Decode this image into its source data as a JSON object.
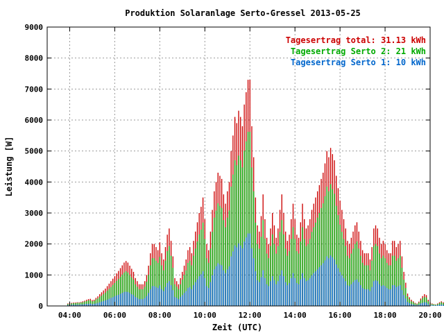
{
  "chart_data": {
    "type": "bar",
    "title": "Produktion Solaranlage Serto-Gressel 2013-05-25",
    "xlabel": "Zeit (UTC)",
    "ylabel": "Leistung [W]",
    "xlim": [
      "03:00",
      "20:00"
    ],
    "ylim": [
      0,
      9000
    ],
    "grid": true,
    "legend_position": "top-right",
    "xticks": [
      "04:00",
      "06:00",
      "08:00",
      "10:00",
      "12:00",
      "14:00",
      "16:00",
      "18:00",
      "20:00"
    ],
    "yticks": [
      "0",
      "1000",
      "2000",
      "3000",
      "4000",
      "5000",
      "6000",
      "7000",
      "8000",
      "9000"
    ],
    "interval_minutes": 5,
    "series": [
      {
        "name": "Tagesertrag total: 31.13 kWh",
        "color": "#cc0000",
        "x_start": "03:55",
        "values": [
          80,
          90,
          100,
          110,
          110,
          120,
          120,
          130,
          150,
          170,
          200,
          220,
          230,
          190,
          200,
          260,
          310,
          380,
          440,
          500,
          560,
          640,
          720,
          800,
          880,
          960,
          1050,
          1130,
          1220,
          1310,
          1400,
          1450,
          1400,
          1300,
          1200,
          1100,
          900,
          800,
          700,
          700,
          700,
          800,
          1000,
          1300,
          1700,
          2000,
          2000,
          1900,
          1800,
          2050,
          1700,
          1500,
          1900,
          2300,
          2500,
          2100,
          1600,
          900,
          800,
          700,
          900,
          1100,
          1300,
          1500,
          1800,
          1900,
          1700,
          2100,
          2400,
          2700,
          3000,
          3200,
          3500,
          2800,
          2000,
          1800,
          2400,
          3100,
          3700,
          4000,
          4300,
          4200,
          4100,
          3600,
          3300,
          3700,
          4000,
          5000,
          5500,
          6100,
          5900,
          6300,
          6100,
          5800,
          6500,
          6900,
          7300,
          7300,
          5800,
          4800,
          3500,
          2600,
          2400,
          2900,
          3600,
          2800,
          2200,
          2000,
          2500,
          3000,
          2600,
          2200,
          2500,
          3100,
          3600,
          3000,
          2400,
          2100,
          2300,
          2800,
          3300,
          2800,
          2300,
          2200,
          2700,
          3300,
          2800,
          2500,
          2600,
          2800,
          3100,
          3300,
          3500,
          3700,
          3900,
          4100,
          4300,
          4600,
          5000,
          4800,
          5100,
          4900,
          4700,
          4200,
          3800,
          3400,
          3100,
          2800,
          2500,
          2100,
          2000,
          2200,
          2400,
          2600,
          2700,
          2400,
          2100,
          1800,
          1700,
          1700,
          1700,
          1500,
          1900,
          2500,
          2600,
          2500,
          2200,
          2000,
          2100,
          2000,
          1800,
          1700,
          1700,
          2100,
          2100,
          1900,
          2000,
          2100,
          1600,
          1100,
          750,
          400,
          280,
          200,
          150,
          100,
          80,
          140,
          240,
          320,
          380,
          350,
          200,
          120,
          80,
          60,
          50,
          80,
          120,
          150,
          120,
          60,
          40,
          25,
          10,
          0
        ]
      },
      {
        "name": "Tagesertrag Serto 2: 21 kWh",
        "color": "#00aa00",
        "x_start": "03:55",
        "values": [
          60,
          70,
          80,
          90,
          90,
          100,
          100,
          110,
          120,
          140,
          160,
          180,
          180,
          150,
          160,
          210,
          240,
          290,
          330,
          380,
          430,
          490,
          550,
          610,
          680,
          740,
          810,
          870,
          940,
          1010,
          1080,
          1120,
          1080,
          1000,
          920,
          850,
          700,
          620,
          540,
          540,
          540,
          620,
          780,
          1000,
          1310,
          1540,
          1540,
          1460,
          1390,
          1580,
          1310,
          1150,
          1460,
          1770,
          1930,
          1620,
          1230,
          700,
          620,
          540,
          700,
          850,
          1000,
          1150,
          1390,
          1460,
          1310,
          1620,
          1850,
          2080,
          2310,
          2460,
          2690,
          2160,
          1540,
          1390,
          1850,
          2390,
          2850,
          3080,
          3310,
          3230,
          3160,
          2770,
          2540,
          2850,
          3080,
          3850,
          4240,
          4700,
          4540,
          4850,
          4700,
          4470,
          5010,
          5310,
          5620,
          5620,
          4470,
          3700,
          2690,
          2000,
          1850,
          2230,
          2770,
          2160,
          1690,
          1540,
          1930,
          2310,
          2000,
          1690,
          1930,
          2390,
          2770,
          2310,
          1850,
          1620,
          1770,
          2160,
          2540,
          2160,
          1770,
          1690,
          2080,
          2540,
          2160,
          1930,
          2000,
          2160,
          2390,
          2540,
          2690,
          2850,
          3000,
          3160,
          3310,
          3540,
          3850,
          3700,
          3930,
          3770,
          3620,
          3230,
          2930,
          2620,
          2390,
          2160,
          1930,
          1620,
          1540,
          1690,
          1850,
          2000,
          2080,
          1850,
          1620,
          1390,
          1310,
          1310,
          1310,
          1150,
          1460,
          1930,
          2000,
          1930,
          1690,
          1540,
          1620,
          1540,
          1390,
          1310,
          1310,
          1620,
          1620,
          1460,
          1540,
          1620,
          1230,
          850,
          580,
          310,
          220,
          150,
          120,
          80,
          60,
          110,
          190,
          250,
          290,
          270,
          150,
          90,
          60,
          50,
          40,
          60,
          90,
          120,
          90,
          50,
          30,
          20,
          8,
          0
        ]
      },
      {
        "name": "Tagesertrag Serto 1: 10 kWh",
        "color": "#0066cc",
        "x_start": "03:55",
        "values": [
          30,
          30,
          40,
          40,
          40,
          40,
          40,
          50,
          50,
          60,
          70,
          70,
          80,
          60,
          70,
          80,
          100,
          120,
          140,
          160,
          180,
          200,
          230,
          260,
          280,
          310,
          340,
          360,
          390,
          420,
          450,
          460,
          450,
          420,
          380,
          350,
          290,
          260,
          220,
          220,
          220,
          260,
          320,
          420,
          540,
          640,
          640,
          610,
          580,
          660,
          540,
          480,
          610,
          740,
          800,
          670,
          510,
          290,
          260,
          220,
          290,
          350,
          420,
          480,
          580,
          610,
          540,
          670,
          770,
          860,
          960,
          1020,
          1120,
          900,
          640,
          580,
          770,
          990,
          1180,
          1280,
          1380,
          1340,
          1310,
          1150,
          1060,
          1180,
          1280,
          1600,
          1760,
          1950,
          1890,
          2020,
          1950,
          1860,
          2080,
          2210,
          2340,
          2340,
          1860,
          1540,
          1120,
          830,
          770,
          930,
          1150,
          900,
          700,
          640,
          800,
          960,
          830,
          700,
          800,
          990,
          1150,
          960,
          770,
          670,
          740,
          900,
          1060,
          900,
          740,
          700,
          860,
          1060,
          900,
          800,
          830,
          900,
          990,
          1060,
          1120,
          1180,
          1250,
          1310,
          1380,
          1470,
          1600,
          1540,
          1630,
          1570,
          1500,
          1340,
          1220,
          1090,
          990,
          900,
          800,
          670,
          640,
          700,
          770,
          830,
          860,
          770,
          670,
          580,
          540,
          540,
          540,
          480,
          610,
          800,
          830,
          800,
          700,
          640,
          670,
          640,
          580,
          540,
          540,
          670,
          670,
          610,
          640,
          670,
          510,
          350,
          240,
          130,
          90,
          60,
          50,
          30,
          30,
          40,
          80,
          100,
          120,
          110,
          60,
          40,
          30,
          20,
          20,
          30,
          40,
          50,
          40,
          20,
          10,
          10,
          0,
          0
        ]
      }
    ]
  }
}
